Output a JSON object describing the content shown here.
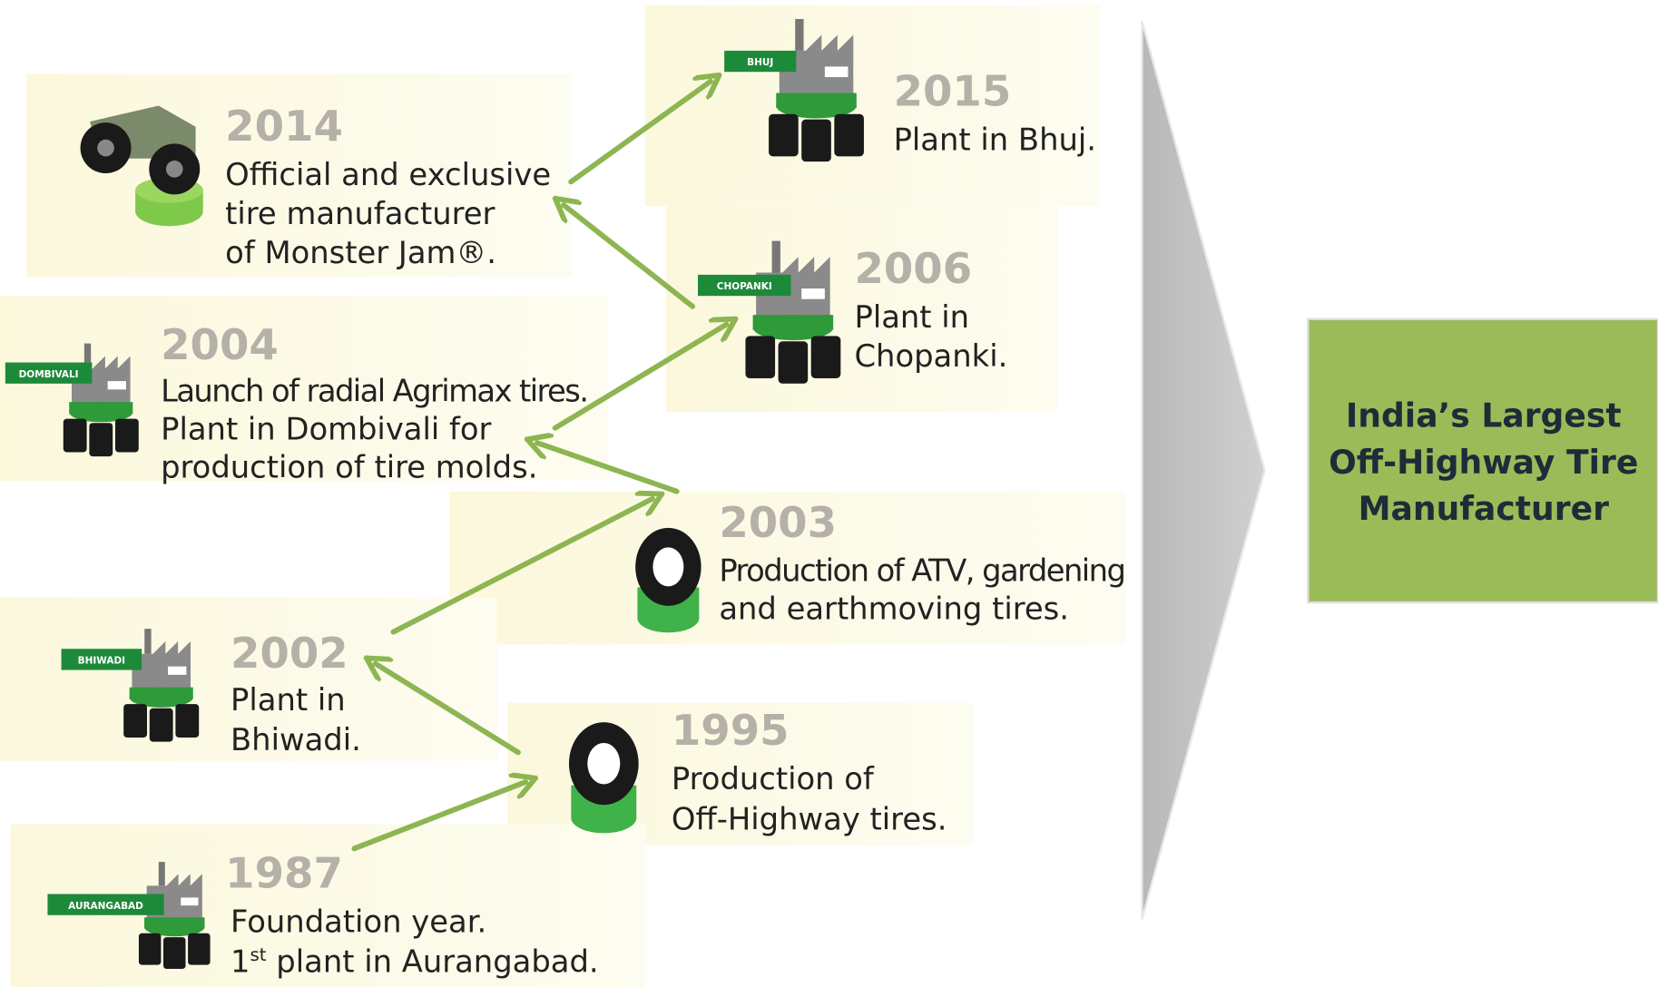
{
  "milestones": [
    {
      "year": "2014",
      "lines": [
        "Official and exclusive",
        "tire manufacturer",
        "of Monster Jam®."
      ]
    },
    {
      "year": "2015",
      "plant": "BHUJ",
      "lines": [
        "Plant in Bhuj."
      ]
    },
    {
      "year": "2006",
      "plant": "CHOPANKI",
      "lines": [
        "Plant in",
        "Chopanki."
      ]
    },
    {
      "year": "2004",
      "plant": "DOMBIVALI",
      "lines": [
        "Launch of radial Agrimax tires.",
        "Plant in Dombivali for",
        "production of tire molds."
      ]
    },
    {
      "year": "2003",
      "lines": [
        "Production of ATV, gardening",
        "and earthmoving tires."
      ]
    },
    {
      "year": "2002",
      "plant": "BHIWADI",
      "lines": [
        "Plant in",
        "Bhiwadi."
      ]
    },
    {
      "year": "1995",
      "lines": [
        "Production of",
        "Off-Highway tires."
      ]
    },
    {
      "year": "1987",
      "plant": "AURANGABAD",
      "lines": [
        "Foundation year.",
        [
          "1",
          "st",
          " plant in Aurangabad."
        ]
      ]
    }
  ],
  "callout": {
    "lines": [
      "India’s Largest",
      "Off-Highway Tire",
      "Manufacturer"
    ]
  }
}
